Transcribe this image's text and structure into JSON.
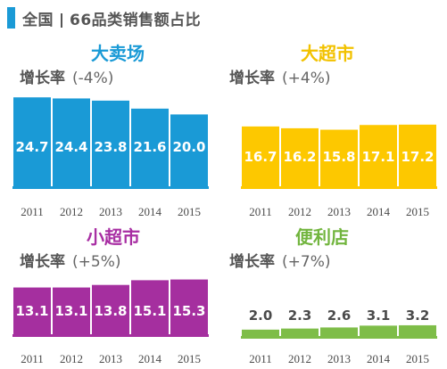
{
  "header": {
    "title_part1": "全国",
    "title_part2": "66品类销售额占比",
    "accent_color": "#1a9ad6"
  },
  "growth_label": "增长率",
  "chart_data": [
    {
      "type": "bar",
      "title": "大卖场",
      "growth": "(-4%)",
      "title_color": "#1a9ad6",
      "bar_color": "#1a9ad6",
      "label_color": "#ffffff",
      "categories": [
        "2011",
        "2012",
        "2013",
        "2014",
        "2015"
      ],
      "values": [
        24.7,
        24.4,
        23.8,
        21.6,
        20.0
      ],
      "value_labels": [
        "24.7",
        "24.4",
        "23.8",
        "21.6",
        "20.0"
      ]
    },
    {
      "type": "bar",
      "title": "大超市",
      "growth": "(+4%)",
      "title_color": "#f2c200",
      "bar_color": "#fdc800",
      "label_color": "#ffffff",
      "categories": [
        "2011",
        "2012",
        "2013",
        "2014",
        "2015"
      ],
      "values": [
        16.7,
        16.2,
        15.8,
        17.1,
        17.2
      ],
      "value_labels": [
        "16.7",
        "16.2",
        "15.8",
        "17.1",
        "17.2"
      ]
    },
    {
      "type": "bar",
      "title": "小超市",
      "growth": "(+5%)",
      "title_color": "#a82ea3",
      "bar_color": "#a52f9f",
      "label_color": "#ffffff",
      "categories": [
        "2011",
        "2012",
        "2013",
        "2014",
        "2015"
      ],
      "values": [
        13.1,
        13.1,
        13.8,
        15.1,
        15.3
      ],
      "value_labels": [
        "13.1",
        "13.1",
        "13.8",
        "15.1",
        "15.3"
      ]
    },
    {
      "type": "bar",
      "title": "便利店",
      "growth": "(+7%)",
      "title_color": "#72b53e",
      "bar_color": "#7ebd48",
      "label_color": "#4a4a4a",
      "categories": [
        "2011",
        "2012",
        "2013",
        "2014",
        "2015"
      ],
      "values": [
        2.0,
        2.3,
        2.6,
        3.1,
        3.2
      ],
      "value_labels": [
        "2.0",
        "2.3",
        "2.6",
        "3.1",
        "3.2"
      ]
    }
  ]
}
